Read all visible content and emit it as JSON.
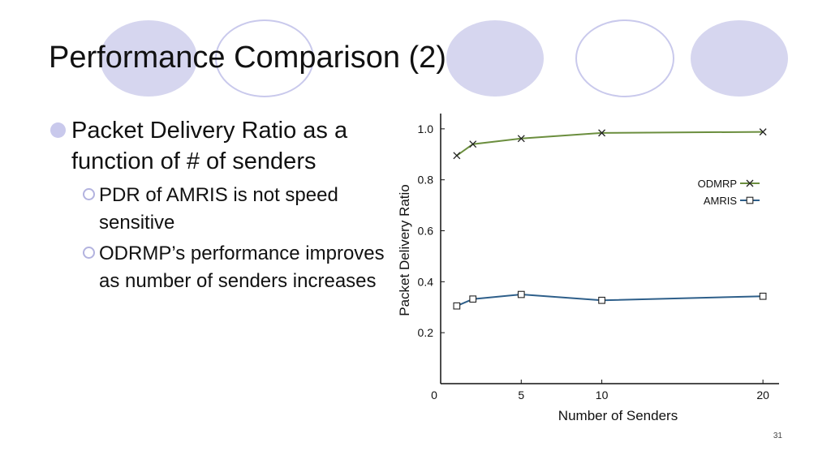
{
  "slide": {
    "title": "Performance Comparison (2)",
    "page_number": "31",
    "colors": {
      "circle_fill": "#d6d6ef",
      "circle_stroke": "#c9c9ec"
    }
  },
  "bullets": {
    "main": "Packet Delivery Ratio as a function of # of senders",
    "subs": [
      "PDR of AMRIS is not speed sensitive",
      "ODRMP’s performance improves as number of senders increases"
    ]
  },
  "chart_data": {
    "type": "line",
    "xlabel": "Number of Senders",
    "ylabel": "Packet Delivery Ratio",
    "xlim": [
      0,
      21
    ],
    "ylim": [
      0,
      1.06
    ],
    "x_ticks": [
      0,
      5,
      10,
      20
    ],
    "x_tick_labels": [
      "0",
      "5",
      "10",
      "20"
    ],
    "y_ticks": [
      0.2,
      0.4,
      0.6,
      0.8,
      1.0
    ],
    "y_tick_labels": [
      "0.2",
      "0.4",
      "0.6",
      "0.8",
      "1.0"
    ],
    "grid": false,
    "legend_position": "right",
    "series": [
      {
        "name": "ODMRP",
        "marker": "x",
        "color": "#6b8e3e",
        "x": [
          1,
          2,
          5,
          10,
          20
        ],
        "y": [
          0.895,
          0.94,
          0.962,
          0.984,
          0.988
        ]
      },
      {
        "name": "AMRIS",
        "marker": "square",
        "color": "#2e5f8a",
        "x": [
          1,
          2,
          5,
          10,
          20
        ],
        "y": [
          0.305,
          0.332,
          0.35,
          0.327,
          0.343
        ]
      }
    ]
  }
}
